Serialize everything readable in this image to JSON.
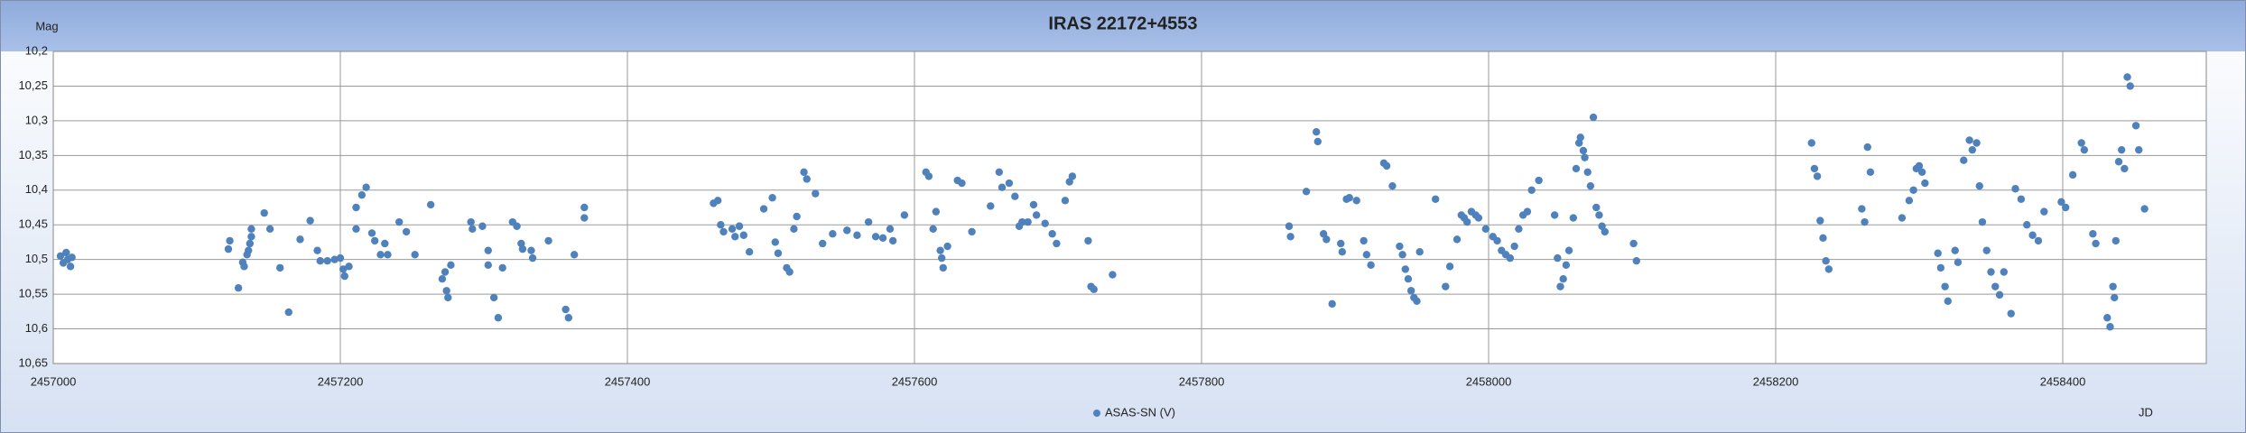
{
  "chart_data": {
    "type": "scatter",
    "title": "IRAS 22172+4553",
    "y_label": "Mag",
    "x_label": "JD",
    "xlim": [
      2457000,
      2458500
    ],
    "xticks": [
      2457000,
      2457200,
      2457400,
      2457600,
      2457800,
      2458000,
      2458200,
      2458400
    ],
    "ylim": [
      10.65,
      10.2
    ],
    "yticks": [
      {
        "value": 10.2,
        "label": "10,2"
      },
      {
        "value": 10.25,
        "label": "10,25"
      },
      {
        "value": 10.3,
        "label": "10,3"
      },
      {
        "value": 10.35,
        "label": "10,35"
      },
      {
        "value": 10.4,
        "label": "10,4"
      },
      {
        "value": 10.45,
        "label": "10,45"
      },
      {
        "value": 10.5,
        "label": "10,5"
      },
      {
        "value": 10.55,
        "label": "10,55"
      },
      {
        "value": 10.6,
        "label": "10,6"
      },
      {
        "value": 10.65,
        "label": "10,65"
      }
    ],
    "grid": true,
    "legend": "bottom",
    "x": [
      2457005,
      2457007,
      2457009,
      2457010,
      2457012,
      2457013,
      2457123,
      2457122,
      2457129,
      2457132,
      2457133,
      2457135,
      2457136,
      2457137,
      2457138,
      2457138,
      2457147,
      2457151,
      2457158,
      2457164,
      2457172,
      2457179,
      2457184,
      2457186,
      2457191,
      2457196,
      2457200,
      2457202,
      2457203,
      2457206,
      2457211,
      2457211,
      2457215,
      2457218,
      2457222,
      2457224,
      2457228,
      2457233,
      2457231,
      2457241,
      2457246,
      2457252,
      2457263,
      2457271,
      2457273,
      2457274,
      2457275,
      2457277,
      2457291,
      2457292,
      2457299,
      2457303,
      2457303,
      2457307,
      2457310,
      2457313,
      2457320,
      2457323,
      2457326,
      2457327,
      2457333,
      2457334,
      2457345,
      2457357,
      2457359,
      2457363,
      2457370,
      2457370,
      2457460,
      2457463,
      2457465,
      2457467,
      2457473,
      2457475,
      2457478,
      2457481,
      2457485,
      2457495,
      2457501,
      2457503,
      2457505,
      2457511,
      2457513,
      2457516,
      2457518,
      2457523,
      2457525,
      2457531,
      2457536,
      2457543,
      2457553,
      2457560,
      2457568,
      2457573,
      2457578,
      2457583,
      2457585,
      2457593,
      2457608,
      2457610,
      2457613,
      2457615,
      2457618,
      2457619,
      2457620,
      2457623,
      2457630,
      2457633,
      2457640,
      2457653,
      2457659,
      2457661,
      2457666,
      2457670,
      2457673,
      2457675,
      2457679,
      2457683,
      2457685,
      2457691,
      2457696,
      2457699,
      2457705,
      2457708,
      2457710,
      2457721,
      2457723,
      2457725,
      2457738,
      2457861,
      2457862,
      2457873,
      2457880,
      2457881,
      2457885,
      2457887,
      2457891,
      2457897,
      2457898,
      2457901,
      2457903,
      2457908,
      2457913,
      2457915,
      2457918,
      2457927,
      2457929,
      2457933,
      2457938,
      2457940,
      2457942,
      2457944,
      2457946,
      2457948,
      2457950,
      2457952,
      2457963,
      2457970,
      2457973,
      2457978,
      2457981,
      2457983,
      2457985,
      2457988,
      2457991,
      2457993,
      2457998,
      2458003,
      2458006,
      2458009,
      2458012,
      2458015,
      2458018,
      2458021,
      2458024,
      2458027,
      2458030,
      2458035,
      2458046,
      2458048,
      2458050,
      2458052,
      2458054,
      2458056,
      2458059,
      2458061,
      2458063,
      2458064,
      2458066,
      2458067,
      2458069,
      2458071,
      2458073,
      2458075,
      2458077,
      2458079,
      2458081,
      2458101,
      2458103,
      2458225,
      2458227,
      2458229,
      2458231,
      2458233,
      2458235,
      2458237,
      2458260,
      2458262,
      2458264,
      2458266,
      2458288,
      2458293,
      2458296,
      2458298,
      2458300,
      2458302,
      2458304,
      2458313,
      2458315,
      2458318,
      2458320,
      2458325,
      2458327,
      2458331,
      2458335,
      2458337,
      2458340,
      2458342,
      2458344,
      2458347,
      2458350,
      2458353,
      2458356,
      2458359,
      2458364,
      2458367,
      2458371,
      2458375,
      2458379,
      2458383,
      2458387,
      2458399,
      2458402,
      2458407,
      2458413,
      2458415,
      2458421,
      2458423,
      2458431,
      2458433,
      2458435,
      2458436,
      2458437,
      2458439,
      2458441,
      2458443,
      2458445,
      2458447,
      2458451,
      2458453,
      2458457
    ],
    "series": [
      {
        "name": "ASAS-SN (V)",
        "color": "#4f81bd",
        "values": [
          10.495,
          10.505,
          10.49,
          10.5,
          10.51,
          10.497,
          10.473,
          10.485,
          10.541,
          10.504,
          10.51,
          10.493,
          10.487,
          10.477,
          10.467,
          10.456,
          10.433,
          10.456,
          10.512,
          10.576,
          10.471,
          10.444,
          10.487,
          10.502,
          10.502,
          10.5,
          10.498,
          10.514,
          10.524,
          10.51,
          10.456,
          10.425,
          10.407,
          10.396,
          10.462,
          10.473,
          10.493,
          10.493,
          10.477,
          10.446,
          10.46,
          10.493,
          10.421,
          10.528,
          10.518,
          10.545,
          10.555,
          10.508,
          10.446,
          10.456,
          10.452,
          10.487,
          10.508,
          10.555,
          10.584,
          10.512,
          10.446,
          10.452,
          10.477,
          10.485,
          10.487,
          10.498,
          10.473,
          10.572,
          10.584,
          10.493,
          10.425,
          10.44,
          10.419,
          10.415,
          10.45,
          10.46,
          10.456,
          10.467,
          10.452,
          10.465,
          10.489,
          10.427,
          10.411,
          10.475,
          10.491,
          10.512,
          10.518,
          10.456,
          10.438,
          10.374,
          10.384,
          10.405,
          10.477,
          10.463,
          10.458,
          10.465,
          10.446,
          10.467,
          10.469,
          10.456,
          10.473,
          10.436,
          10.374,
          10.38,
          10.456,
          10.431,
          10.487,
          10.498,
          10.512,
          10.481,
          10.386,
          10.39,
          10.46,
          10.423,
          10.374,
          10.396,
          10.39,
          10.409,
          10.452,
          10.446,
          10.446,
          10.421,
          10.436,
          10.448,
          10.463,
          10.477,
          10.415,
          10.388,
          10.38,
          10.473,
          10.539,
          10.543,
          10.522,
          10.452,
          10.467,
          10.402,
          10.316,
          10.33,
          10.463,
          10.471,
          10.564,
          10.477,
          10.489,
          10.413,
          10.411,
          10.415,
          10.473,
          10.493,
          10.508,
          10.361,
          10.365,
          10.394,
          10.481,
          10.493,
          10.514,
          10.528,
          10.545,
          10.555,
          10.56,
          10.489,
          10.413,
          10.539,
          10.51,
          10.471,
          10.436,
          10.44,
          10.446,
          10.431,
          10.436,
          10.44,
          10.456,
          10.467,
          10.473,
          10.487,
          10.493,
          10.498,
          10.481,
          10.456,
          10.436,
          10.431,
          10.4,
          10.386,
          10.436,
          10.498,
          10.539,
          10.528,
          10.508,
          10.487,
          10.44,
          10.369,
          10.332,
          10.324,
          10.343,
          10.353,
          10.374,
          10.394,
          10.295,
          10.425,
          10.436,
          10.452,
          10.46,
          10.477,
          10.502,
          10.332,
          10.369,
          10.38,
          10.444,
          10.469,
          10.502,
          10.514,
          10.427,
          10.446,
          10.338,
          10.374,
          10.44,
          10.415,
          10.4,
          10.369,
          10.365,
          10.374,
          10.39,
          10.491,
          10.512,
          10.539,
          10.56,
          10.487,
          10.504,
          10.357,
          10.328,
          10.342,
          10.332,
          10.394,
          10.446,
          10.487,
          10.518,
          10.539,
          10.551,
          10.518,
          10.578,
          10.398,
          10.413,
          10.45,
          10.465,
          10.473,
          10.431,
          10.417,
          10.425,
          10.378,
          10.332,
          10.342,
          10.463,
          10.477,
          10.584,
          10.597,
          10.539,
          10.555,
          10.473,
          10.359,
          10.342,
          10.369,
          10.237,
          10.25,
          10.307,
          10.342,
          10.427
        ]
      }
    ]
  }
}
